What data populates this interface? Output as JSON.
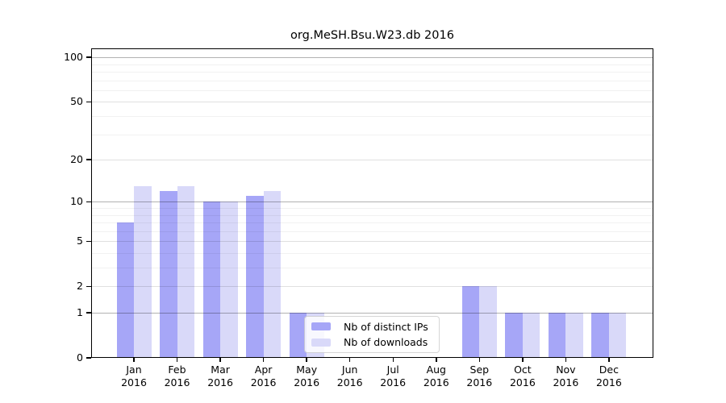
{
  "title": "org.MeSH.Bsu.W23.db 2016",
  "chart_data": {
    "type": "bar",
    "title": "org.MeSH.Bsu.W23.db 2016",
    "categories": [
      "Jan",
      "Feb",
      "Mar",
      "Apr",
      "May",
      "Jun",
      "Jul",
      "Aug",
      "Sep",
      "Oct",
      "Nov",
      "Dec"
    ],
    "category_year": "2016",
    "series": [
      {
        "name": "Nb of distinct IPs",
        "color": "#a6a6f7",
        "values": [
          7,
          12,
          10,
          11,
          1,
          0,
          0,
          0,
          2,
          1,
          1,
          1
        ]
      },
      {
        "name": "Nb of downloads",
        "color": "#d9d9f9",
        "values": [
          13,
          13,
          10,
          12,
          1,
          0,
          0,
          0,
          2,
          1,
          1,
          1
        ]
      }
    ],
    "xlabel": "",
    "ylabel": "",
    "yscale": "log1p",
    "ymax": 115,
    "ylim": [
      0,
      115
    ],
    "yticks": [
      {
        "v": 100,
        "label": "100"
      },
      {
        "v": 50,
        "label": "50"
      },
      {
        "v": 20,
        "label": "20"
      },
      {
        "v": 10,
        "label": "10"
      },
      {
        "v": 5,
        "label": "5"
      },
      {
        "v": 2,
        "label": "2"
      },
      {
        "v": 1,
        "label": "1"
      },
      {
        "v": 0,
        "label": "0"
      }
    ],
    "gridlines_strong": [
      1,
      10,
      100
    ],
    "gridlines_medium": [
      2,
      5,
      20,
      50
    ],
    "gridlines_minor": [
      3,
      4,
      6,
      7,
      8,
      9,
      30,
      40,
      60,
      70,
      80,
      90
    ],
    "grid": true,
    "legend_position": "inside-bottom-center"
  },
  "legend": {
    "entries": [
      "Nb of distinct IPs",
      "Nb of downloads"
    ]
  }
}
